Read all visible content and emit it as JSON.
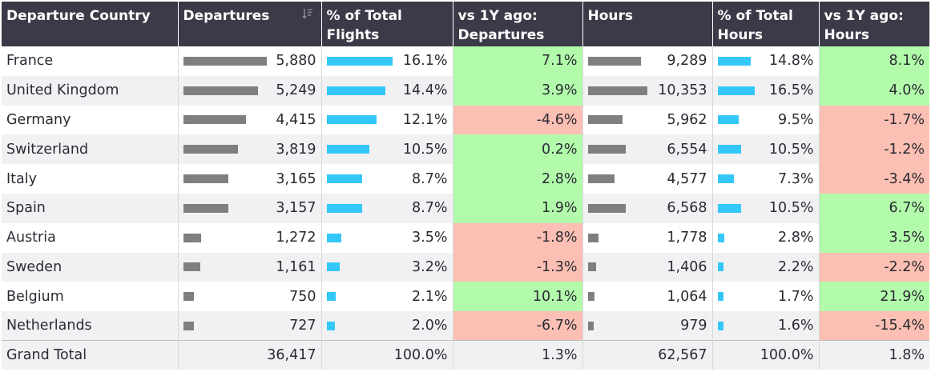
{
  "chart_data": {
    "type": "table",
    "columns": [
      "Departure Country",
      "Departures",
      "% of Total Flights",
      "vs 1Y ago: Departures",
      "Hours",
      "% of Total Hours",
      "vs 1Y ago: Hours"
    ],
    "rows": [
      {
        "country": "France",
        "departures": "5,880",
        "pct_flights": "16.1%",
        "yoy_dep": "7.1%",
        "hours": "9,289",
        "pct_hours": "14.8%",
        "yoy_hours": "8.1%",
        "v": [
          5880,
          16.1,
          7.1,
          9289,
          14.8,
          8.1
        ]
      },
      {
        "country": "United Kingdom",
        "departures": "5,249",
        "pct_flights": "14.4%",
        "yoy_dep": "3.9%",
        "hours": "10,353",
        "pct_hours": "16.5%",
        "yoy_hours": "4.0%",
        "v": [
          5249,
          14.4,
          3.9,
          10353,
          16.5,
          4.0
        ]
      },
      {
        "country": "Germany",
        "departures": "4,415",
        "pct_flights": "12.1%",
        "yoy_dep": "-4.6%",
        "hours": "5,962",
        "pct_hours": "9.5%",
        "yoy_hours": "-1.7%",
        "v": [
          4415,
          12.1,
          -4.6,
          5962,
          9.5,
          -1.7
        ]
      },
      {
        "country": "Switzerland",
        "departures": "3,819",
        "pct_flights": "10.5%",
        "yoy_dep": "0.2%",
        "hours": "6,554",
        "pct_hours": "10.5%",
        "yoy_hours": "-1.2%",
        "v": [
          3819,
          10.5,
          0.2,
          6554,
          10.5,
          -1.2
        ]
      },
      {
        "country": "Italy",
        "departures": "3,165",
        "pct_flights": "8.7%",
        "yoy_dep": "2.8%",
        "hours": "4,577",
        "pct_hours": "7.3%",
        "yoy_hours": "-3.4%",
        "v": [
          3165,
          8.7,
          2.8,
          4577,
          7.3,
          -3.4
        ]
      },
      {
        "country": "Spain",
        "departures": "3,157",
        "pct_flights": "8.7%",
        "yoy_dep": "1.9%",
        "hours": "6,568",
        "pct_hours": "10.5%",
        "yoy_hours": "6.7%",
        "v": [
          3157,
          8.7,
          1.9,
          6568,
          10.5,
          6.7
        ]
      },
      {
        "country": "Austria",
        "departures": "1,272",
        "pct_flights": "3.5%",
        "yoy_dep": "-1.8%",
        "hours": "1,778",
        "pct_hours": "2.8%",
        "yoy_hours": "3.5%",
        "v": [
          1272,
          3.5,
          -1.8,
          1778,
          2.8,
          3.5
        ]
      },
      {
        "country": "Sweden",
        "departures": "1,161",
        "pct_flights": "3.2%",
        "yoy_dep": "-1.3%",
        "hours": "1,406",
        "pct_hours": "2.2%",
        "yoy_hours": "-2.2%",
        "v": [
          1161,
          3.2,
          -1.3,
          1406,
          2.2,
          -2.2
        ]
      },
      {
        "country": "Belgium",
        "departures": "750",
        "pct_flights": "2.1%",
        "yoy_dep": "10.1%",
        "hours": "1,064",
        "pct_hours": "1.7%",
        "yoy_hours": "21.9%",
        "v": [
          750,
          2.1,
          10.1,
          1064,
          1.7,
          21.9
        ]
      },
      {
        "country": "Netherlands",
        "departures": "727",
        "pct_flights": "2.0%",
        "yoy_dep": "-6.7%",
        "hours": "979",
        "pct_hours": "1.6%",
        "yoy_hours": "-15.4%",
        "v": [
          727,
          2.0,
          -6.7,
          979,
          1.6,
          -15.4
        ]
      }
    ],
    "grand_total": {
      "label": "Grand Total",
      "departures": "36,417",
      "pct_flights": "100.0%",
      "yoy_dep": "1.3%",
      "hours": "62,567",
      "pct_hours": "100.0%",
      "yoy_hours": "1.8%"
    }
  },
  "colors": {
    "header_bg": "#3b3a48",
    "bar_gray": "#7f7f80",
    "bar_blue": "#33c8f8",
    "positive_bg": "#b2fbab",
    "negative_bg": "#fbbfb3"
  },
  "icons": {
    "departures_sort": "sort-descending-icon"
  }
}
